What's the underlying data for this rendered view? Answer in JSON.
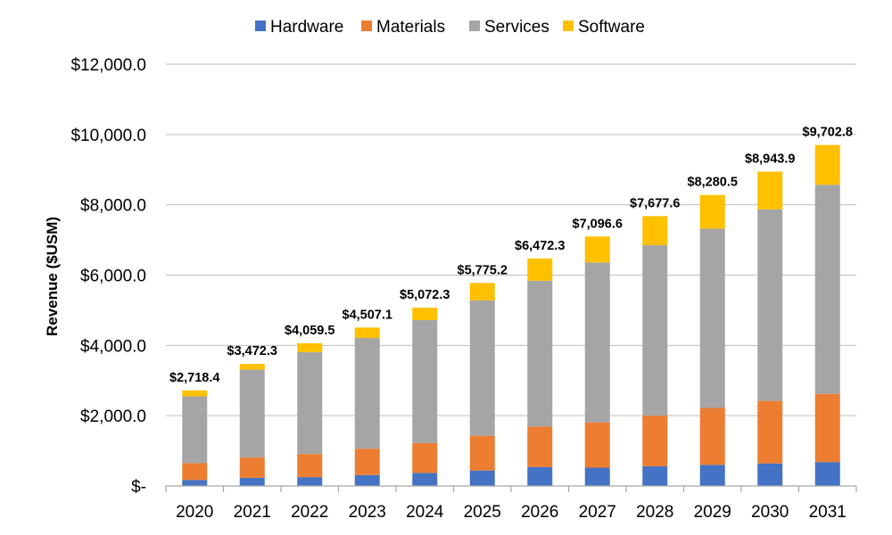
{
  "chart_data": {
    "type": "bar",
    "stacked": true,
    "title": "",
    "xlabel": "",
    "ylabel": "Revenue ($USM)",
    "ylim": [
      0,
      12000
    ],
    "yticks": [
      {
        "value": 0,
        "label": "$-"
      },
      {
        "value": 2000,
        "label": "$2,000.0"
      },
      {
        "value": 4000,
        "label": "$4,000.0"
      },
      {
        "value": 6000,
        "label": "$6,000.0"
      },
      {
        "value": 8000,
        "label": "$8,000.0"
      },
      {
        "value": 10000,
        "label": "$10,000.0"
      },
      {
        "value": 12000,
        "label": "$12,000.0"
      }
    ],
    "grid": true,
    "legend_position": "top-center",
    "categories": [
      "2020",
      "2021",
      "2022",
      "2023",
      "2024",
      "2025",
      "2026",
      "2027",
      "2028",
      "2029",
      "2030",
      "2031"
    ],
    "series": [
      {
        "name": "Hardware",
        "color": "#4472C4",
        "values": [
          170,
          230,
          250,
          310,
          370,
          440,
          540,
          520,
          560,
          600,
          640,
          680
        ]
      },
      {
        "name": "Materials",
        "color": "#ED7D31",
        "values": [
          480,
          580,
          660,
          750,
          850,
          990,
          1150,
          1290,
          1440,
          1620,
          1780,
          1940
        ]
      },
      {
        "name": "Services",
        "color": "#A5A5A5",
        "values": [
          1900,
          2500,
          2900,
          3150,
          3500,
          3850,
          4150,
          4550,
          4850,
          5100,
          5450,
          5950
        ]
      },
      {
        "name": "Software",
        "color": "#FFC000",
        "values": [
          168.4,
          162.3,
          249.5,
          297.1,
          352.3,
          495.2,
          632.3,
          736.6,
          827.6,
          960.5,
          1073.9,
          1132.8
        ]
      }
    ],
    "totals": [
      "$2,718.4",
      "$3,472.3",
      "$4,059.5",
      "$4,507.1",
      "$5,072.3",
      "$5,775.2",
      "$6,472.3",
      "$7,096.6",
      "$7,677.6",
      "$8,280.5",
      "$8,943.9",
      "$9,702.8"
    ]
  }
}
